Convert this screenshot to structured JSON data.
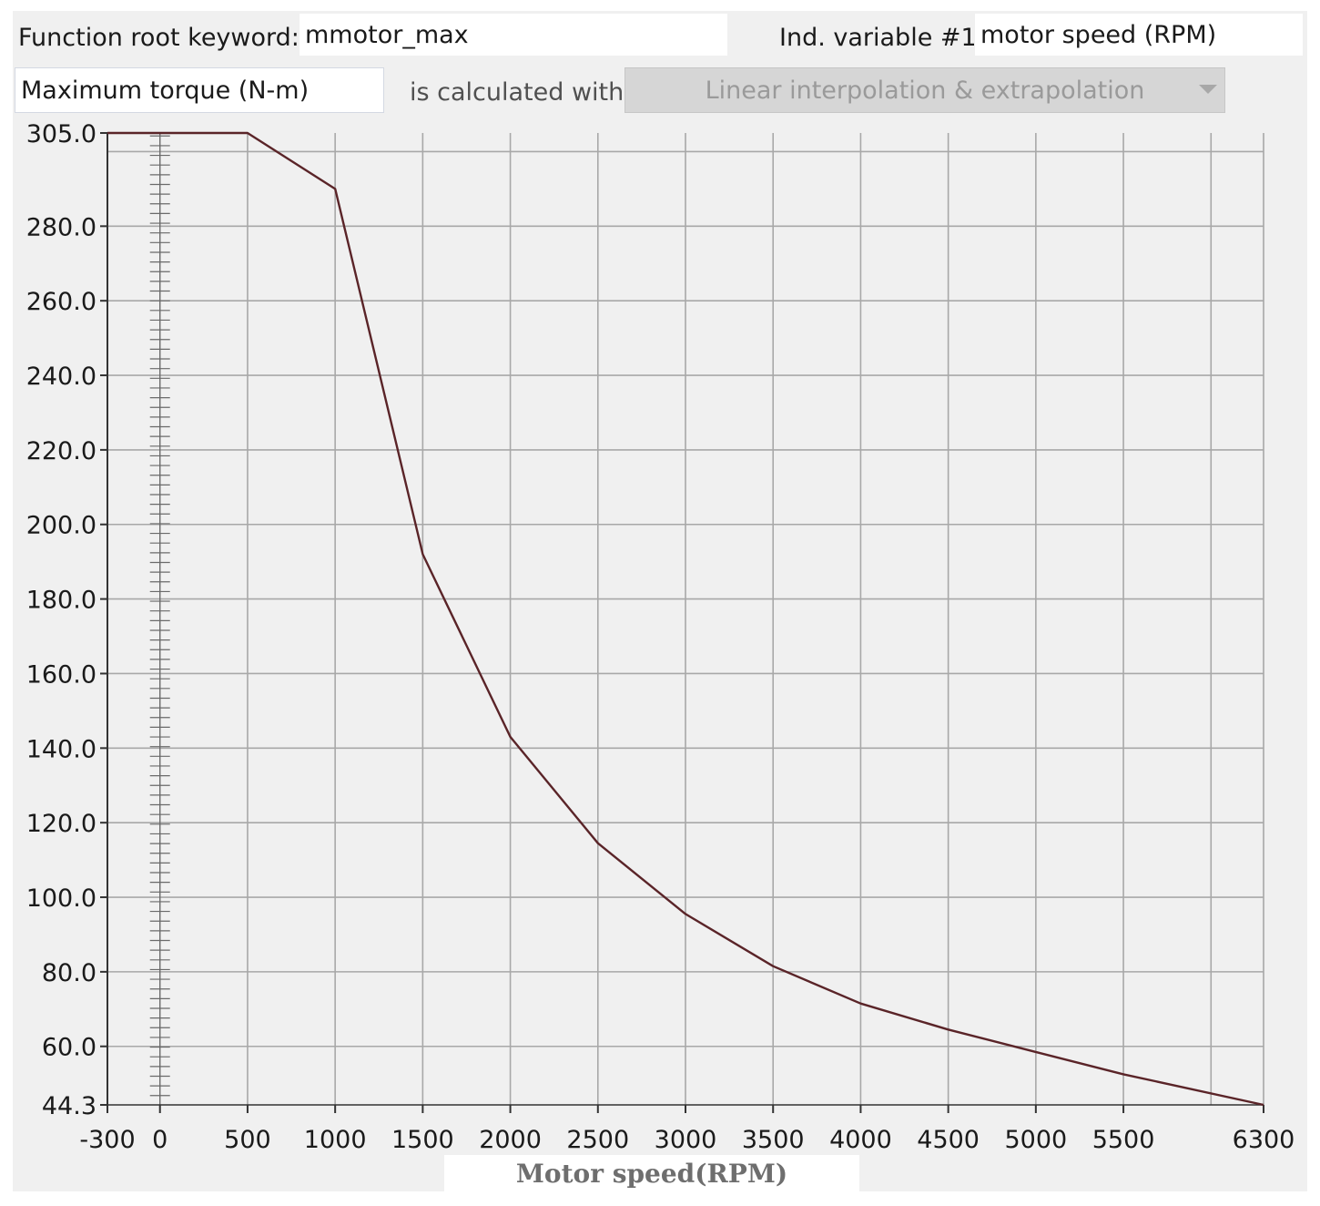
{
  "form": {
    "root_keyword_label": "Function root keyword:",
    "root_keyword_value": "mmotor_max",
    "ind_variable_label": "Ind. variable #1:",
    "ind_variable_value": "motor speed (RPM)",
    "output_value": "Maximum torque (N-m)",
    "calc_label": "is calculated with",
    "method_value": "Linear interpolation & extrapolation",
    "method_icon": "chevron-down-icon"
  },
  "chart_data": {
    "type": "line",
    "title": "",
    "xlabel": "Motor speed(RPM)",
    "ylabel": "",
    "xlim": [
      -300,
      6300
    ],
    "ylim": [
      44.3,
      305.0
    ],
    "x_ticks": [
      -300,
      0,
      500,
      1000,
      1500,
      2000,
      2500,
      3000,
      3500,
      4000,
      4500,
      5000,
      5500,
      6300
    ],
    "x_tick_labels": [
      "-300",
      "0",
      "500",
      "1000",
      "1500",
      "2000",
      "2500",
      "3000",
      "3500",
      "4000",
      "4500",
      "5000",
      "5500",
      "6300"
    ],
    "y_ticks": [
      44.3,
      60.0,
      80.0,
      100.0,
      120.0,
      140.0,
      160.0,
      180.0,
      200.0,
      220.0,
      240.0,
      260.0,
      280.0,
      305.0
    ],
    "y_tick_labels": [
      "44.3",
      "60.0",
      "80.0",
      "100.0",
      "120.0",
      "140.0",
      "160.0",
      "180.0",
      "200.0",
      "220.0",
      "240.0",
      "260.0",
      "280.0",
      "305.0"
    ],
    "x_gridlines": [
      500,
      1000,
      1500,
      2000,
      2500,
      3000,
      3500,
      4000,
      4500,
      5000,
      5500,
      6000,
      6300
    ],
    "y_gridlines": [
      60,
      80,
      100,
      120,
      140,
      160,
      180,
      200,
      220,
      240,
      260,
      280,
      300
    ],
    "grid": true,
    "series": [
      {
        "x": [
          -300,
          500,
          1000,
          1500,
          2000,
          2500,
          3000,
          3500,
          4000,
          4500,
          5000,
          5500,
          6300
        ],
        "y": [
          305.0,
          305.0,
          290.0,
          192.0,
          143.0,
          114.5,
          95.5,
          81.5,
          71.5,
          64.5,
          58.5,
          52.5,
          44.3
        ],
        "color": "#5a2428"
      }
    ],
    "colors": {
      "grid": "#a8a8a8",
      "axis": "#333333",
      "plot_background": "#f0f0f0"
    }
  }
}
